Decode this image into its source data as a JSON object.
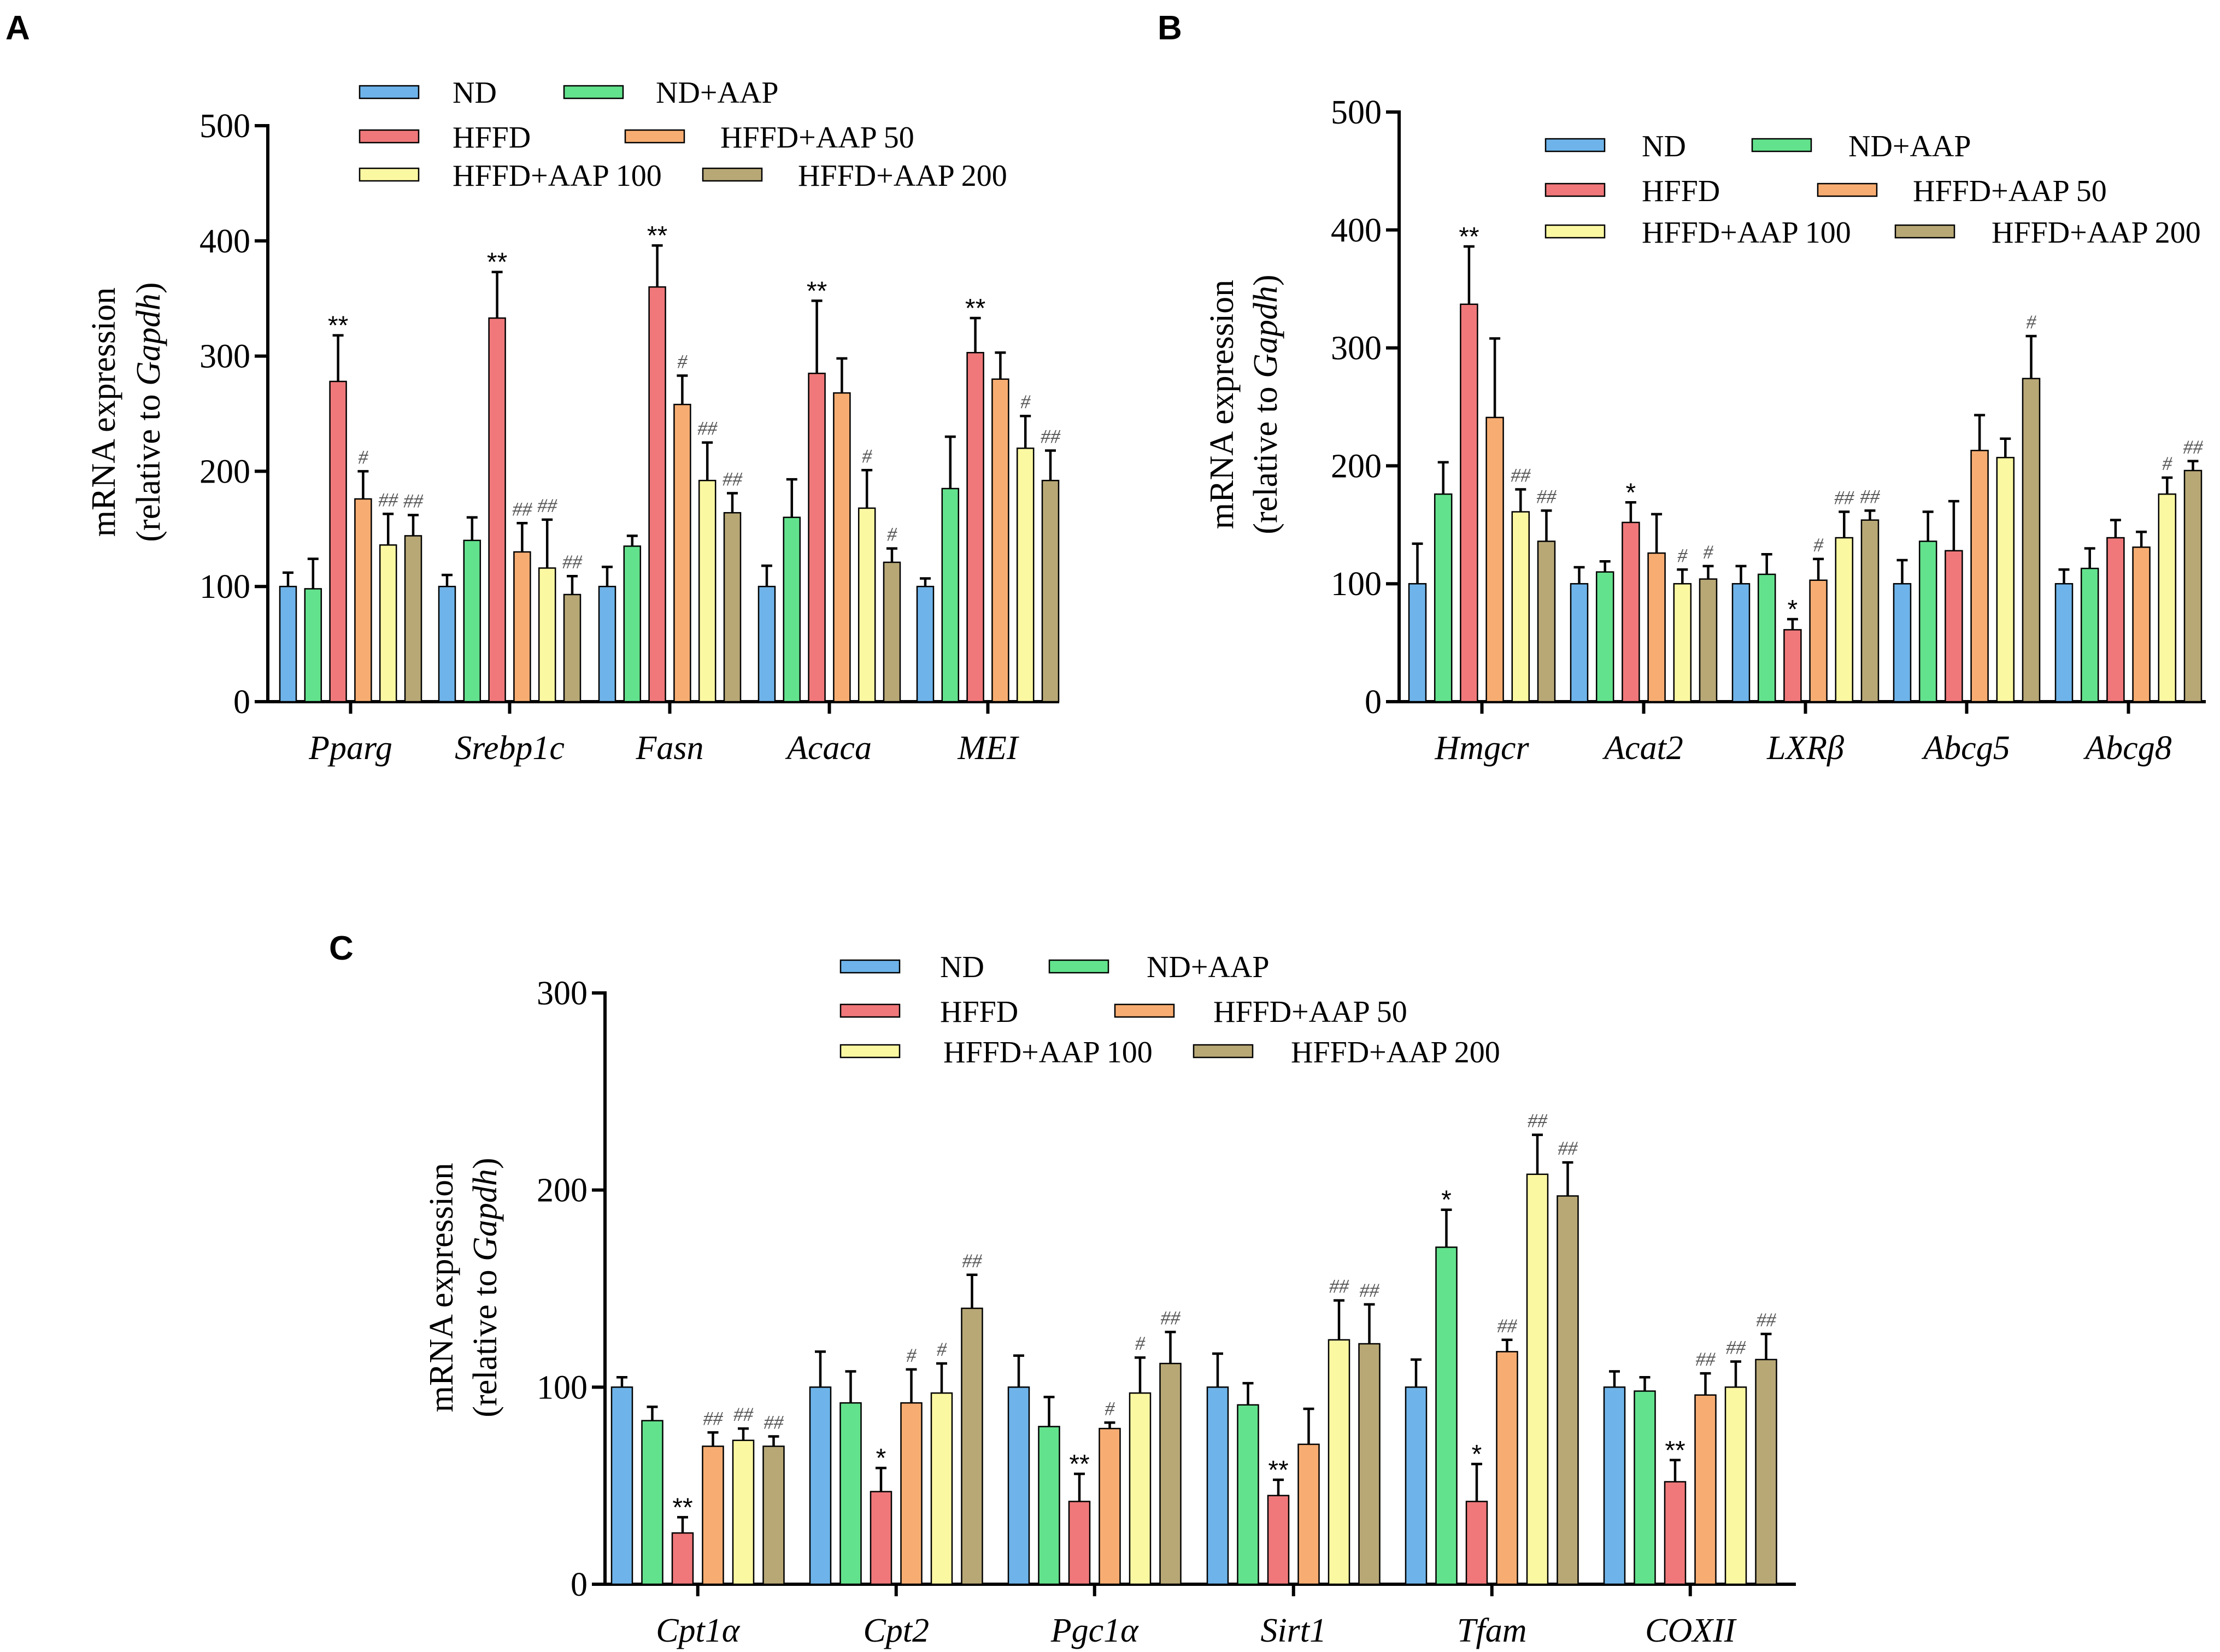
{
  "colors": {
    "ND": "#6eb4ea",
    "ND+AAP": "#63e28d",
    "HFFD": "#f0787a",
    "HFFD+AAP 50": "#f7ad72",
    "HFFD+AAP 100": "#fbf8a2",
    "HFFD+AAP 200": "#b8a876"
  },
  "chart_data": [
    {
      "panel": "A",
      "type": "bar",
      "ylabel_line1": "mRNA expression",
      "ylabel_line2_prefix": "(relative to ",
      "ylabel_line2_italic": "Gapdh",
      "ylabel_line2_suffix": ")",
      "ylim": [
        0,
        500
      ],
      "yticks": [
        0,
        100,
        200,
        300,
        400,
        500
      ],
      "legend": [
        "ND",
        "ND+AAP",
        "HFFD",
        "HFFD+AAP 50",
        "HFFD+AAP 100",
        "HFFD+AAP 200"
      ],
      "categories": [
        "Pparg",
        "Srebp1c",
        "Fasn",
        "Acaca",
        "MEI"
      ],
      "series": [
        {
          "name": "ND",
          "values": [
            100,
            100,
            100,
            100,
            100
          ],
          "errors": [
            12,
            10,
            17,
            18,
            7
          ],
          "marks": [
            "",
            "",
            "",
            "",
            ""
          ]
        },
        {
          "name": "ND+AAP",
          "values": [
            98,
            140,
            135,
            160,
            185
          ],
          "errors": [
            26,
            20,
            9,
            33,
            45
          ],
          "marks": [
            "",
            "",
            "",
            "",
            ""
          ]
        },
        {
          "name": "HFFD",
          "values": [
            278,
            333,
            360,
            285,
            303
          ],
          "errors": [
            40,
            40,
            36,
            63,
            30
          ],
          "marks": [
            "**",
            "**",
            "**",
            "**",
            "**"
          ]
        },
        {
          "name": "HFFD+AAP 50",
          "values": [
            176,
            130,
            258,
            268,
            280
          ],
          "errors": [
            24,
            25,
            25,
            30,
            23
          ],
          "marks": [
            "#",
            "##",
            "#",
            "",
            ""
          ]
        },
        {
          "name": "HFFD+AAP 100",
          "values": [
            136,
            116,
            192,
            168,
            220
          ],
          "errors": [
            27,
            42,
            33,
            33,
            28
          ],
          "marks": [
            "##",
            "##",
            "##",
            "#",
            "#"
          ]
        },
        {
          "name": "HFFD+AAP 200",
          "values": [
            144,
            93,
            164,
            121,
            192
          ],
          "errors": [
            18,
            16,
            17,
            12,
            26
          ],
          "marks": [
            "##",
            "##",
            "##",
            "#",
            "##"
          ]
        }
      ]
    },
    {
      "panel": "B",
      "type": "bar",
      "ylabel_line1": "mRNA expression",
      "ylabel_line2_prefix": "(relative to ",
      "ylabel_line2_italic": "Gapdh",
      "ylabel_line2_suffix": ")",
      "ylim": [
        0,
        500
      ],
      "yticks": [
        0,
        100,
        200,
        300,
        400,
        500
      ],
      "legend": [
        "ND",
        "ND+AAP",
        "HFFD",
        "HFFD+AAP 50",
        "HFFD+AAP 100",
        "HFFD+AAP 200"
      ],
      "categories": [
        "Hmgcr",
        "Acat2",
        "LXRβ",
        "Abcg5",
        "Abcg8"
      ],
      "series": [
        {
          "name": "ND",
          "values": [
            100,
            100,
            100,
            100,
            100
          ],
          "errors": [
            34,
            14,
            15,
            20,
            12
          ],
          "marks": [
            "",
            "",
            "",
            "",
            ""
          ]
        },
        {
          "name": "ND+AAP",
          "values": [
            176,
            110,
            108,
            136,
            113
          ],
          "errors": [
            27,
            9,
            17,
            25,
            17
          ],
          "marks": [
            "",
            "",
            "",
            "",
            ""
          ]
        },
        {
          "name": "HFFD",
          "values": [
            337,
            152,
            61,
            128,
            139
          ],
          "errors": [
            49,
            17,
            9,
            42,
            15
          ],
          "marks": [
            "**",
            "*",
            "*",
            "",
            ""
          ]
        },
        {
          "name": "HFFD+AAP 50",
          "values": [
            241,
            126,
            103,
            213,
            131
          ],
          "errors": [
            67,
            33,
            18,
            30,
            13
          ],
          "marks": [
            "",
            "",
            "#",
            "",
            ""
          ]
        },
        {
          "name": "HFFD+AAP 100",
          "values": [
            161,
            100,
            139,
            207,
            176
          ],
          "errors": [
            19,
            12,
            22,
            16,
            14
          ],
          "marks": [
            "##",
            "#",
            "##",
            "",
            "#"
          ]
        },
        {
          "name": "HFFD+AAP 200",
          "values": [
            136,
            104,
            154,
            274,
            196
          ],
          "errors": [
            26,
            11,
            8,
            36,
            8
          ],
          "marks": [
            "##",
            "#",
            "##",
            "#",
            "##"
          ]
        }
      ]
    },
    {
      "panel": "C",
      "type": "bar",
      "ylabel_line1": "mRNA expression",
      "ylabel_line2_prefix": "(relative to ",
      "ylabel_line2_italic": "Gapdh",
      "ylabel_line2_suffix": ")",
      "ylim": [
        0,
        300
      ],
      "yticks": [
        0,
        100,
        200,
        300
      ],
      "legend": [
        "ND",
        "ND+AAP",
        "HFFD",
        "HFFD+AAP 50",
        "HFFD+AAP 100",
        "HFFD+AAP 200"
      ],
      "categories": [
        "Cpt1α",
        "Cpt2",
        "Pgc1α",
        "Sirt1",
        "Tfam",
        "COXII"
      ],
      "series": [
        {
          "name": "ND",
          "values": [
            100,
            100,
            100,
            100,
            100,
            100
          ],
          "errors": [
            5,
            18,
            16,
            17,
            14,
            8
          ],
          "marks": [
            "",
            "",
            "",
            "",
            "",
            ""
          ]
        },
        {
          "name": "ND+AAP",
          "values": [
            83,
            92,
            80,
            91,
            171,
            98
          ],
          "errors": [
            7,
            16,
            15,
            11,
            19,
            7
          ],
          "marks": [
            "",
            "",
            "",
            "",
            "*",
            ""
          ]
        },
        {
          "name": "HFFD",
          "values": [
            26,
            47,
            42,
            45,
            42,
            52
          ],
          "errors": [
            8,
            12,
            14,
            8,
            19,
            11
          ],
          "marks": [
            "**",
            "*",
            "**",
            "**",
            "*",
            "**"
          ]
        },
        {
          "name": "HFFD+AAP 50",
          "values": [
            70,
            92,
            79,
            71,
            118,
            96
          ],
          "errors": [
            7,
            17,
            3,
            18,
            6,
            11
          ],
          "marks": [
            "##",
            "#",
            "#",
            "",
            "##",
            "##"
          ]
        },
        {
          "name": "HFFD+AAP 100",
          "values": [
            73,
            97,
            97,
            124,
            208,
            100
          ],
          "errors": [
            6,
            15,
            18,
            20,
            20,
            13
          ],
          "marks": [
            "##",
            "#",
            "#",
            "##",
            "##",
            "##"
          ]
        },
        {
          "name": "HFFD+AAP 200",
          "values": [
            70,
            140,
            112,
            122,
            197,
            114
          ],
          "errors": [
            5,
            17,
            16,
            20,
            17,
            13
          ],
          "marks": [
            "##",
            "##",
            "##",
            "##",
            "##",
            "##"
          ]
        }
      ]
    }
  ]
}
